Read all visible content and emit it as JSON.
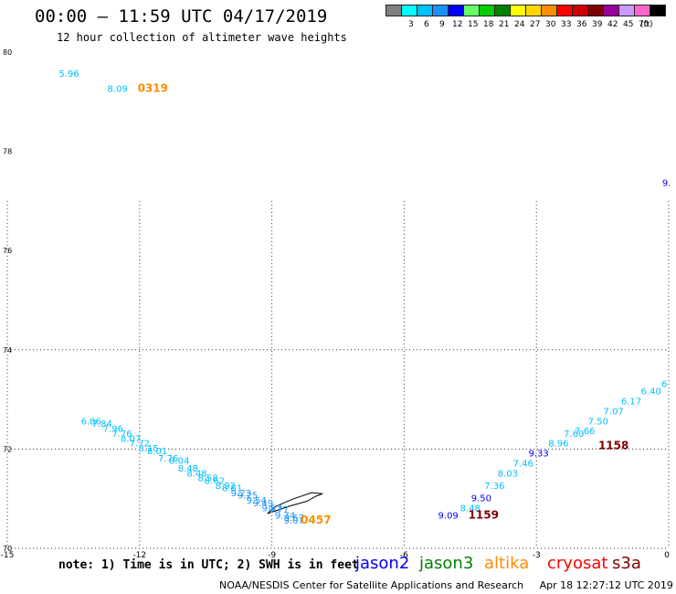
{
  "header": {
    "title": "00:00 – 11:59 UTC 04/17/2019",
    "subtitle": "12 hour collection of altimeter wave heights"
  },
  "legend_colorbar": {
    "unit": "(ft)",
    "swatches": [
      {
        "label": "",
        "color": "#808080"
      },
      {
        "label": "3",
        "color": "#00ffff"
      },
      {
        "label": "6",
        "color": "#00bfff"
      },
      {
        "label": "9",
        "color": "#1e90ff"
      },
      {
        "label": "12",
        "color": "#0000ff"
      },
      {
        "label": "15",
        "color": "#66ff66"
      },
      {
        "label": "18",
        "color": "#00cc00"
      },
      {
        "label": "21",
        "color": "#008000"
      },
      {
        "label": "24",
        "color": "#ffff00"
      },
      {
        "label": "27",
        "color": "#ffd700"
      },
      {
        "label": "30",
        "color": "#ff8c00"
      },
      {
        "label": "33",
        "color": "#ff0000"
      },
      {
        "label": "36",
        "color": "#cc0000"
      },
      {
        "label": "39",
        "color": "#800000"
      },
      {
        "label": "42",
        "color": "#990099"
      },
      {
        "label": "45",
        "color": "#cc99ff"
      },
      {
        "label": "70",
        "color": "#ff66cc"
      },
      {
        "label": "",
        "color": "#000000"
      }
    ]
  },
  "chart_data": {
    "type": "scatter",
    "title": "00:00 – 11:59 UTC 04/17/2019",
    "subtitle": "12 hour collection of altimeter wave heights",
    "xlim": [
      -15,
      0
    ],
    "ylim": [
      70,
      80
    ],
    "x_ticks": [
      -15,
      -12,
      -9,
      -6,
      -3,
      0
    ],
    "x_tick_labels": [
      "-15",
      "-12",
      "-9",
      "-6",
      "-3",
      "0"
    ],
    "y_ticks": [
      70,
      72,
      74,
      76,
      78,
      80
    ],
    "y_tick_labels": [
      "70",
      "72",
      "74",
      "76",
      "78",
      "80"
    ],
    "grid": true,
    "coastline": [
      [
        -9.1,
        70.7
      ],
      [
        -8.6,
        70.85
      ],
      [
        -8.2,
        70.95
      ],
      [
        -8.0,
        71.05
      ],
      [
        -7.85,
        71.1
      ],
      [
        -8.1,
        71.12
      ],
      [
        -8.5,
        71.0
      ],
      [
        -8.9,
        70.85
      ],
      [
        -9.1,
        70.7
      ]
    ],
    "points": [
      {
        "lon": -13.6,
        "lat": 79.5,
        "label": "5.96",
        "color": "#00bfff"
      },
      {
        "lon": -12.5,
        "lat": 79.2,
        "label": "8.09",
        "color": "#00bfff"
      },
      {
        "lon": -11.7,
        "lat": 79.2,
        "label": "0319",
        "color": "#ff8c00",
        "time": true
      },
      {
        "lon": -0.05,
        "lat": 77.3,
        "label": "9.",
        "color": "#0000ff"
      },
      {
        "lon": -13.1,
        "lat": 72.5,
        "label": "6.86",
        "color": "#00bfff"
      },
      {
        "lon": -12.85,
        "lat": 72.45,
        "label": "7.84",
        "color": "#00bfff"
      },
      {
        "lon": -12.6,
        "lat": 72.35,
        "label": "7.96",
        "color": "#00bfff"
      },
      {
        "lon": -12.4,
        "lat": 72.25,
        "label": "7.76",
        "color": "#00bfff"
      },
      {
        "lon": -12.2,
        "lat": 72.15,
        "label": "8.07",
        "color": "#00bfff"
      },
      {
        "lon": -12.0,
        "lat": 72.05,
        "label": "7.72",
        "color": "#00bfff"
      },
      {
        "lon": -11.8,
        "lat": 71.95,
        "label": "8.15",
        "color": "#00bfff"
      },
      {
        "lon": -11.6,
        "lat": 71.9,
        "label": "8.01",
        "color": "#00bfff"
      },
      {
        "lon": -11.35,
        "lat": 71.75,
        "label": "7.76",
        "color": "#00bfff"
      },
      {
        "lon": -11.1,
        "lat": 71.7,
        "label": "8.04",
        "color": "#00bfff"
      },
      {
        "lon": -10.9,
        "lat": 71.55,
        "label": "8.48",
        "color": "#00bfff"
      },
      {
        "lon": -10.7,
        "lat": 71.45,
        "label": "8.48",
        "color": "#00bfff"
      },
      {
        "lon": -10.45,
        "lat": 71.35,
        "label": "8.58",
        "color": "#00bfff"
      },
      {
        "lon": -10.3,
        "lat": 71.3,
        "label": "8.62",
        "color": "#00bfff"
      },
      {
        "lon": -10.05,
        "lat": 71.2,
        "label": "8.92",
        "color": "#00bfff"
      },
      {
        "lon": -9.9,
        "lat": 71.15,
        "label": "8.81",
        "color": "#00bfff"
      },
      {
        "lon": -9.7,
        "lat": 71.05,
        "label": "9.23",
        "color": "#1e90ff"
      },
      {
        "lon": -9.55,
        "lat": 71.0,
        "label": "9.25",
        "color": "#1e90ff"
      },
      {
        "lon": -9.35,
        "lat": 70.9,
        "label": "9.54",
        "color": "#1e90ff"
      },
      {
        "lon": -9.2,
        "lat": 70.85,
        "label": "9.49",
        "color": "#1e90ff"
      },
      {
        "lon": -9.0,
        "lat": 70.75,
        "label": "9.57",
        "color": "#1e90ff"
      },
      {
        "lon": -8.85,
        "lat": 70.72,
        "label": "9.77",
        "color": "#1e90ff"
      },
      {
        "lon": -8.7,
        "lat": 70.6,
        "label": "9.74",
        "color": "#1e90ff"
      },
      {
        "lon": -8.5,
        "lat": 70.55,
        "label": "9.67",
        "color": "#1e90ff"
      },
      {
        "lon": -8.5,
        "lat": 70.5,
        "label": "9.07",
        "color": "#1e90ff"
      },
      {
        "lon": -8.0,
        "lat": 70.5,
        "label": "0457",
        "color": "#ff8c00",
        "time": true
      },
      {
        "lon": -5.0,
        "lat": 70.6,
        "label": "9.09",
        "color": "#0000ff"
      },
      {
        "lon": -4.5,
        "lat": 70.75,
        "label": "8.48",
        "color": "#00bfff"
      },
      {
        "lon": -4.25,
        "lat": 70.95,
        "label": "9.50",
        "color": "#0000ff"
      },
      {
        "lon": -3.95,
        "lat": 71.2,
        "label": "7.36",
        "color": "#00bfff"
      },
      {
        "lon": -3.65,
        "lat": 71.45,
        "label": "8.03",
        "color": "#00bfff"
      },
      {
        "lon": -3.3,
        "lat": 71.65,
        "label": "7.46",
        "color": "#00bfff"
      },
      {
        "lon": -2.95,
        "lat": 71.85,
        "label": "9.33",
        "color": "#0000ff"
      },
      {
        "lon": -2.5,
        "lat": 72.05,
        "label": "8.96",
        "color": "#00bfff"
      },
      {
        "lon": -2.15,
        "lat": 72.25,
        "label": "7.60",
        "color": "#00bfff"
      },
      {
        "lon": -1.9,
        "lat": 72.3,
        "label": "7.66",
        "color": "#00bfff"
      },
      {
        "lon": -1.6,
        "lat": 72.5,
        "label": "7.50",
        "color": "#00bfff"
      },
      {
        "lon": -1.25,
        "lat": 72.7,
        "label": "7.07",
        "color": "#00bfff"
      },
      {
        "lon": -0.85,
        "lat": 72.9,
        "label": "6.17",
        "color": "#00bfff"
      },
      {
        "lon": -0.4,
        "lat": 73.1,
        "label": "6.40",
        "color": "#00bfff"
      },
      {
        "lon": -0.1,
        "lat": 73.25,
        "label": "6",
        "color": "#00bfff"
      },
      {
        "lon": -1.25,
        "lat": 72.0,
        "label": "1158",
        "color": "#800000",
        "time": true
      },
      {
        "lon": -4.2,
        "lat": 70.6,
        "label": "1159",
        "color": "#800000",
        "time": true
      }
    ]
  },
  "footer": {
    "note": "note: 1) Time is in UTC; 2) SWH is in feet",
    "missions": [
      {
        "name": "jason2",
        "color": "#0000ff"
      },
      {
        "name": "jason3",
        "color": "#008000"
      },
      {
        "name": "altika",
        "color": "#ff8c00"
      },
      {
        "name": "cryosat",
        "color": "#ff0000"
      },
      {
        "name": "s3a",
        "color": "#800000"
      }
    ],
    "credit": "NOAA/NESDIS Center for Satellite Applications and Research     Apr 18 12:27:12 UTC 2019"
  }
}
